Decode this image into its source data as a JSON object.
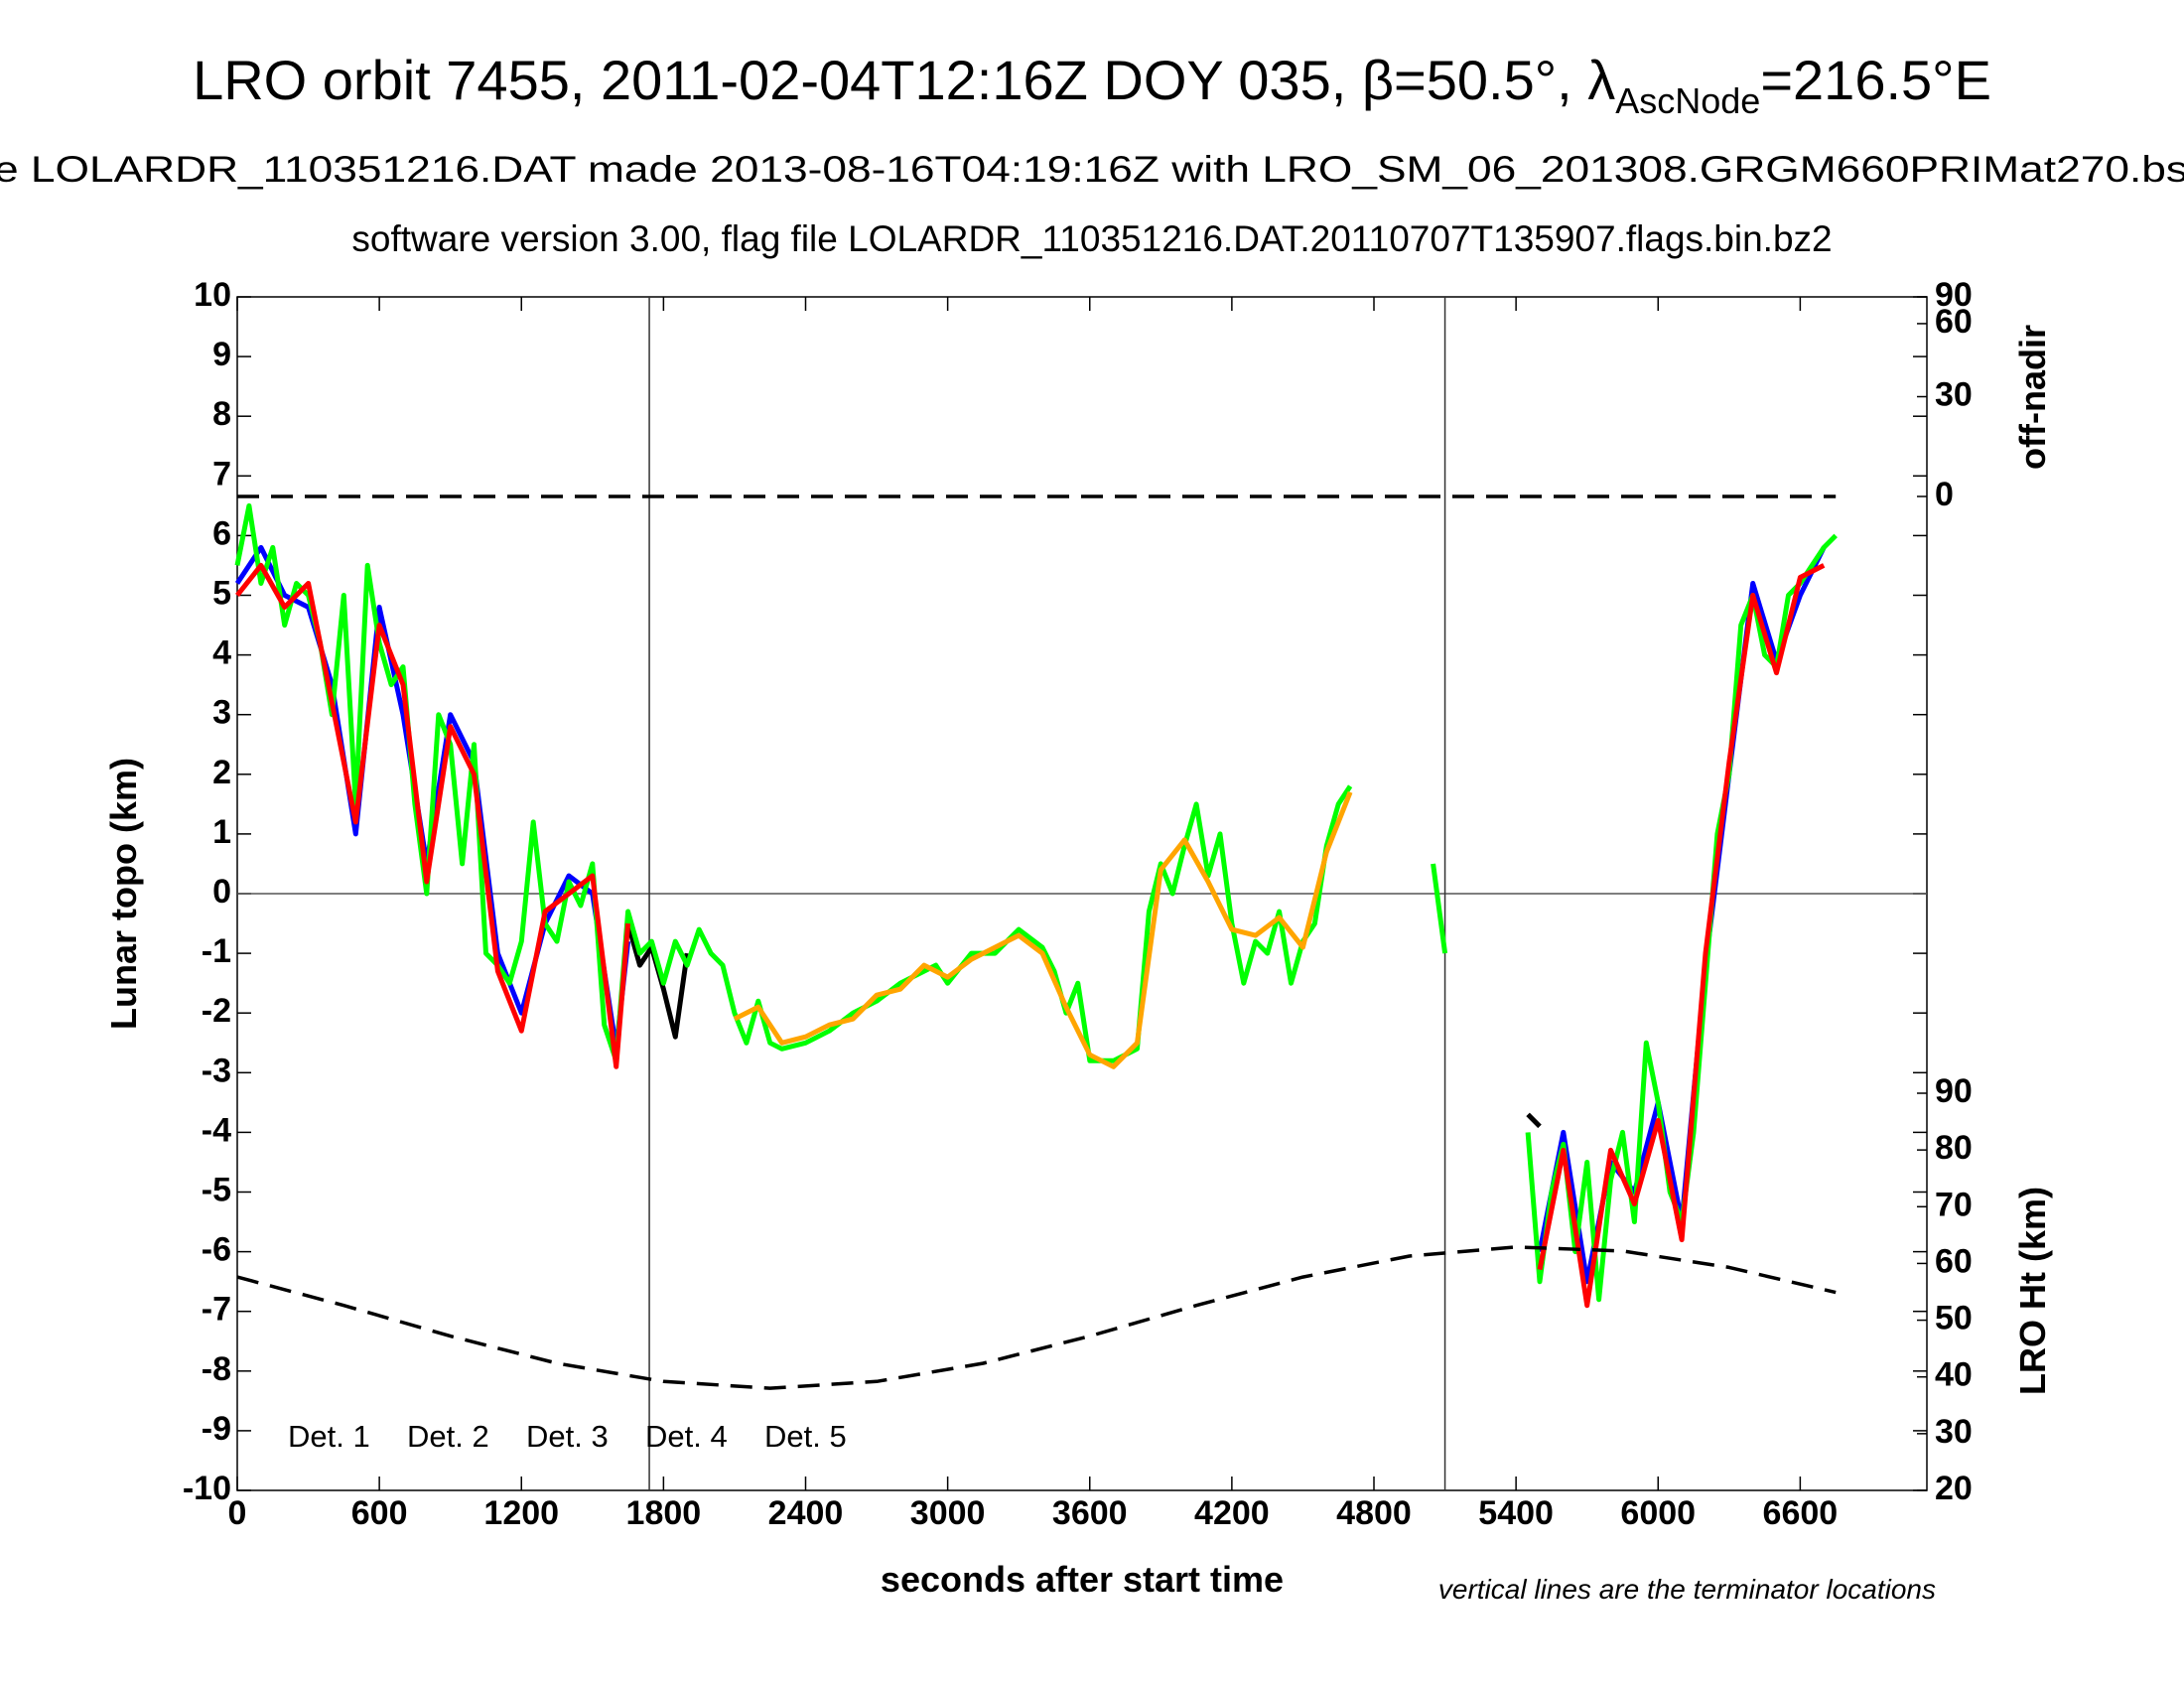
{
  "chart_data": {
    "type": "line",
    "title": "LRO orbit 7455, 2011-02-04T12:16Z DOY 035, β=50.5°, λ",
    "title_subscript": "AscNode",
    "title_end": "=216.5°E",
    "subtitle": "e LOLARDR_110351216.DAT made 2013-08-16T04:19:16Z with LRO_SM_06_201308.GRGM660PRIMat270.bs",
    "subtitle2": "software version 3.00, flag file LOLARDR_110351216.DAT.20110707T135907.flags.bin.bz2",
    "xlabel": "seconds after start time",
    "ylabel": "Lunar topo (km)",
    "y2label": "off-nadir",
    "y3label": "LRO Ht (km)",
    "note": "vertical lines are the terminator locations",
    "xlim": [
      0,
      7135
    ],
    "xticks": [
      0,
      600,
      1200,
      1800,
      2400,
      3000,
      3600,
      4200,
      4800,
      5400,
      6000,
      6600
    ],
    "ylim": [
      -10,
      10
    ],
    "yticks": [
      -10,
      -9,
      -8,
      -7,
      -6,
      -5,
      -4,
      -3,
      -2,
      -1,
      0,
      1,
      2,
      3,
      4,
      5,
      6,
      7,
      8,
      9,
      10
    ],
    "y2lim": [
      0,
      90
    ],
    "y2ticks": [
      0,
      30,
      60,
      90
    ],
    "y2scale": "sine",
    "y3lim": [
      20,
      90
    ],
    "y3ticks": [
      20,
      30,
      40,
      50,
      60,
      70,
      80,
      90
    ],
    "zero_line": true,
    "terminators": [
      1740,
      5100
    ],
    "series": [
      {
        "name": "Det. 1",
        "color": "#000000",
        "x": [
          1650,
          1700,
          1750,
          1800,
          1850,
          1900,
          3000,
          5450,
          5500
        ],
        "values": [
          -0.5,
          -1.2,
          -0.9,
          -1.6,
          -2.4,
          -1.0,
          null,
          -3.7,
          -3.9
        ]
      },
      {
        "name": "Det. 2",
        "color": "#0000ff",
        "x": [
          0,
          100,
          200,
          300,
          400,
          500,
          600,
          700,
          800,
          900,
          1000,
          1100,
          1200,
          1300,
          1400,
          1500,
          1600,
          1650,
          3500,
          5500,
          5600,
          5700,
          5800,
          5900,
          6000,
          6100,
          6200,
          6300,
          6400,
          6500,
          6600,
          6700
        ],
        "values": [
          5.2,
          5.8,
          5.0,
          4.8,
          3.5,
          1.0,
          4.8,
          3.0,
          0.5,
          3.0,
          2.2,
          -1.0,
          -2.0,
          -0.5,
          0.3,
          0.0,
          -2.6,
          -0.8,
          null,
          -6.0,
          -4.0,
          -6.5,
          -4.5,
          -5.0,
          -3.5,
          -5.5,
          -1.2,
          2.0,
          5.2,
          3.9,
          5.0,
          5.8
        ]
      },
      {
        "name": "Det. 3",
        "color": "#00ff00",
        "x": [
          0,
          50,
          100,
          150,
          200,
          250,
          300,
          350,
          400,
          450,
          500,
          550,
          600,
          650,
          700,
          750,
          800,
          850,
          900,
          950,
          1000,
          1050,
          1100,
          1150,
          1200,
          1250,
          1300,
          1350,
          1400,
          1450,
          1500,
          1550,
          1600,
          1650,
          1700,
          1750,
          1800,
          1850,
          1900,
          1950,
          2000,
          2050,
          2100,
          2150,
          2200,
          2250,
          2300,
          2400,
          2500,
          2600,
          2700,
          2800,
          2900,
          2950,
          3000,
          3100,
          3200,
          3300,
          3400,
          3450,
          3500,
          3550,
          3600,
          3700,
          3800,
          3850,
          3900,
          3950,
          4000,
          4050,
          4100,
          4150,
          4200,
          4250,
          4300,
          4350,
          4400,
          4450,
          4500,
          4550,
          4600,
          4650,
          4700,
          4750,
          5050,
          5100,
          5150,
          5450,
          5500,
          5550,
          5600,
          5650,
          5700,
          5750,
          5800,
          5850,
          5900,
          5950,
          6000,
          6050,
          6100,
          6150,
          6200,
          6250,
          6300,
          6350,
          6400,
          6450,
          6500,
          6550,
          6600,
          6650,
          6700,
          6750
        ],
        "values": [
          5.5,
          6.5,
          5.2,
          5.8,
          4.5,
          5.2,
          5.0,
          4.2,
          3.0,
          5.0,
          1.5,
          5.5,
          4.2,
          3.5,
          3.8,
          1.5,
          0.0,
          3.0,
          2.5,
          0.5,
          2.5,
          -1.0,
          -1.2,
          -1.5,
          -0.8,
          1.2,
          -0.5,
          -0.8,
          0.2,
          -0.2,
          0.5,
          -2.2,
          -2.8,
          -0.3,
          -1.0,
          -0.8,
          -1.5,
          -0.8,
          -1.2,
          -0.6,
          -1.0,
          -1.2,
          -2.0,
          -2.5,
          -1.8,
          -2.5,
          -2.6,
          -2.5,
          -2.3,
          -2.0,
          -1.8,
          -1.5,
          -1.3,
          -1.2,
          -1.5,
          -1.0,
          -1.0,
          -0.6,
          -0.9,
          -1.3,
          -2.0,
          -1.5,
          -2.8,
          -2.8,
          -2.6,
          -0.3,
          0.5,
          0.0,
          0.8,
          1.5,
          0.3,
          1.0,
          -0.5,
          -1.5,
          -0.8,
          -1.0,
          -0.3,
          -1.5,
          -0.8,
          -0.5,
          0.8,
          1.5,
          1.8,
          null,
          0.5,
          -1.0,
          null,
          -4.0,
          -6.5,
          -5.0,
          -4.2,
          -6.0,
          -4.5,
          -6.8,
          -4.8,
          -4.0,
          -5.5,
          -2.5,
          -3.5,
          -5.0,
          -5.5,
          -4.0,
          -1.5,
          1.0,
          2.0,
          4.5,
          5.0,
          4.0,
          3.8,
          5.0,
          5.2,
          5.5,
          5.8,
          6.0
        ]
      },
      {
        "name": "Det. 4",
        "color": "#ffa500",
        "x": [
          2100,
          2200,
          2300,
          2400,
          2500,
          2600,
          2700,
          2800,
          2900,
          3000,
          3100,
          3200,
          3300,
          3400,
          3500,
          3600,
          3700,
          3800,
          3900,
          4000,
          4100,
          4200,
          4300,
          4400,
          4500,
          4600,
          4700
        ],
        "values": [
          -2.1,
          -1.9,
          -2.5,
          -2.4,
          -2.2,
          -2.1,
          -1.7,
          -1.6,
          -1.2,
          -1.4,
          -1.1,
          -0.9,
          -0.7,
          -1.0,
          -1.9,
          -2.7,
          -2.9,
          -2.5,
          0.4,
          0.9,
          0.2,
          -0.6,
          -0.7,
          -0.4,
          -0.9,
          0.7,
          1.7
        ]
      },
      {
        "name": "Det. 5",
        "color": "#ff0000",
        "x": [
          0,
          100,
          200,
          300,
          400,
          500,
          600,
          700,
          800,
          900,
          1000,
          1100,
          1200,
          1300,
          1400,
          1500,
          1600,
          1650,
          3500,
          5500,
          5600,
          5700,
          5800,
          5900,
          6000,
          6100,
          6200,
          6300,
          6400,
          6500,
          6600,
          6700
        ],
        "values": [
          5.0,
          5.5,
          4.8,
          5.2,
          3.2,
          1.2,
          4.5,
          3.5,
          0.2,
          2.8,
          2.0,
          -1.3,
          -2.3,
          -0.3,
          0.0,
          0.3,
          -2.9,
          -0.5,
          null,
          -6.3,
          -4.3,
          -6.9,
          -4.3,
          -5.2,
          -3.8,
          -5.8,
          -1.0,
          2.2,
          5.0,
          3.7,
          5.3,
          5.5
        ]
      },
      {
        "name": "off-nadir",
        "axis": "y2",
        "style": "dashed",
        "color": "#000000",
        "x": [
          0,
          6750
        ],
        "values": [
          0,
          0
        ]
      },
      {
        "name": "LRO Ht",
        "axis": "y3",
        "style": "dashed",
        "color": "#000000",
        "x": [
          0,
          450,
          900,
          1350,
          1800,
          2250,
          2700,
          3150,
          3600,
          4050,
          4500,
          4950,
          5400,
          5850,
          6300,
          6750
        ],
        "values": [
          57.6,
          52.6,
          47.2,
          42.4,
          39.2,
          38.0,
          39.2,
          42.4,
          47.2,
          52.6,
          57.6,
          61.3,
          62.9,
          62.2,
          59.3,
          54.9
        ]
      }
    ]
  }
}
